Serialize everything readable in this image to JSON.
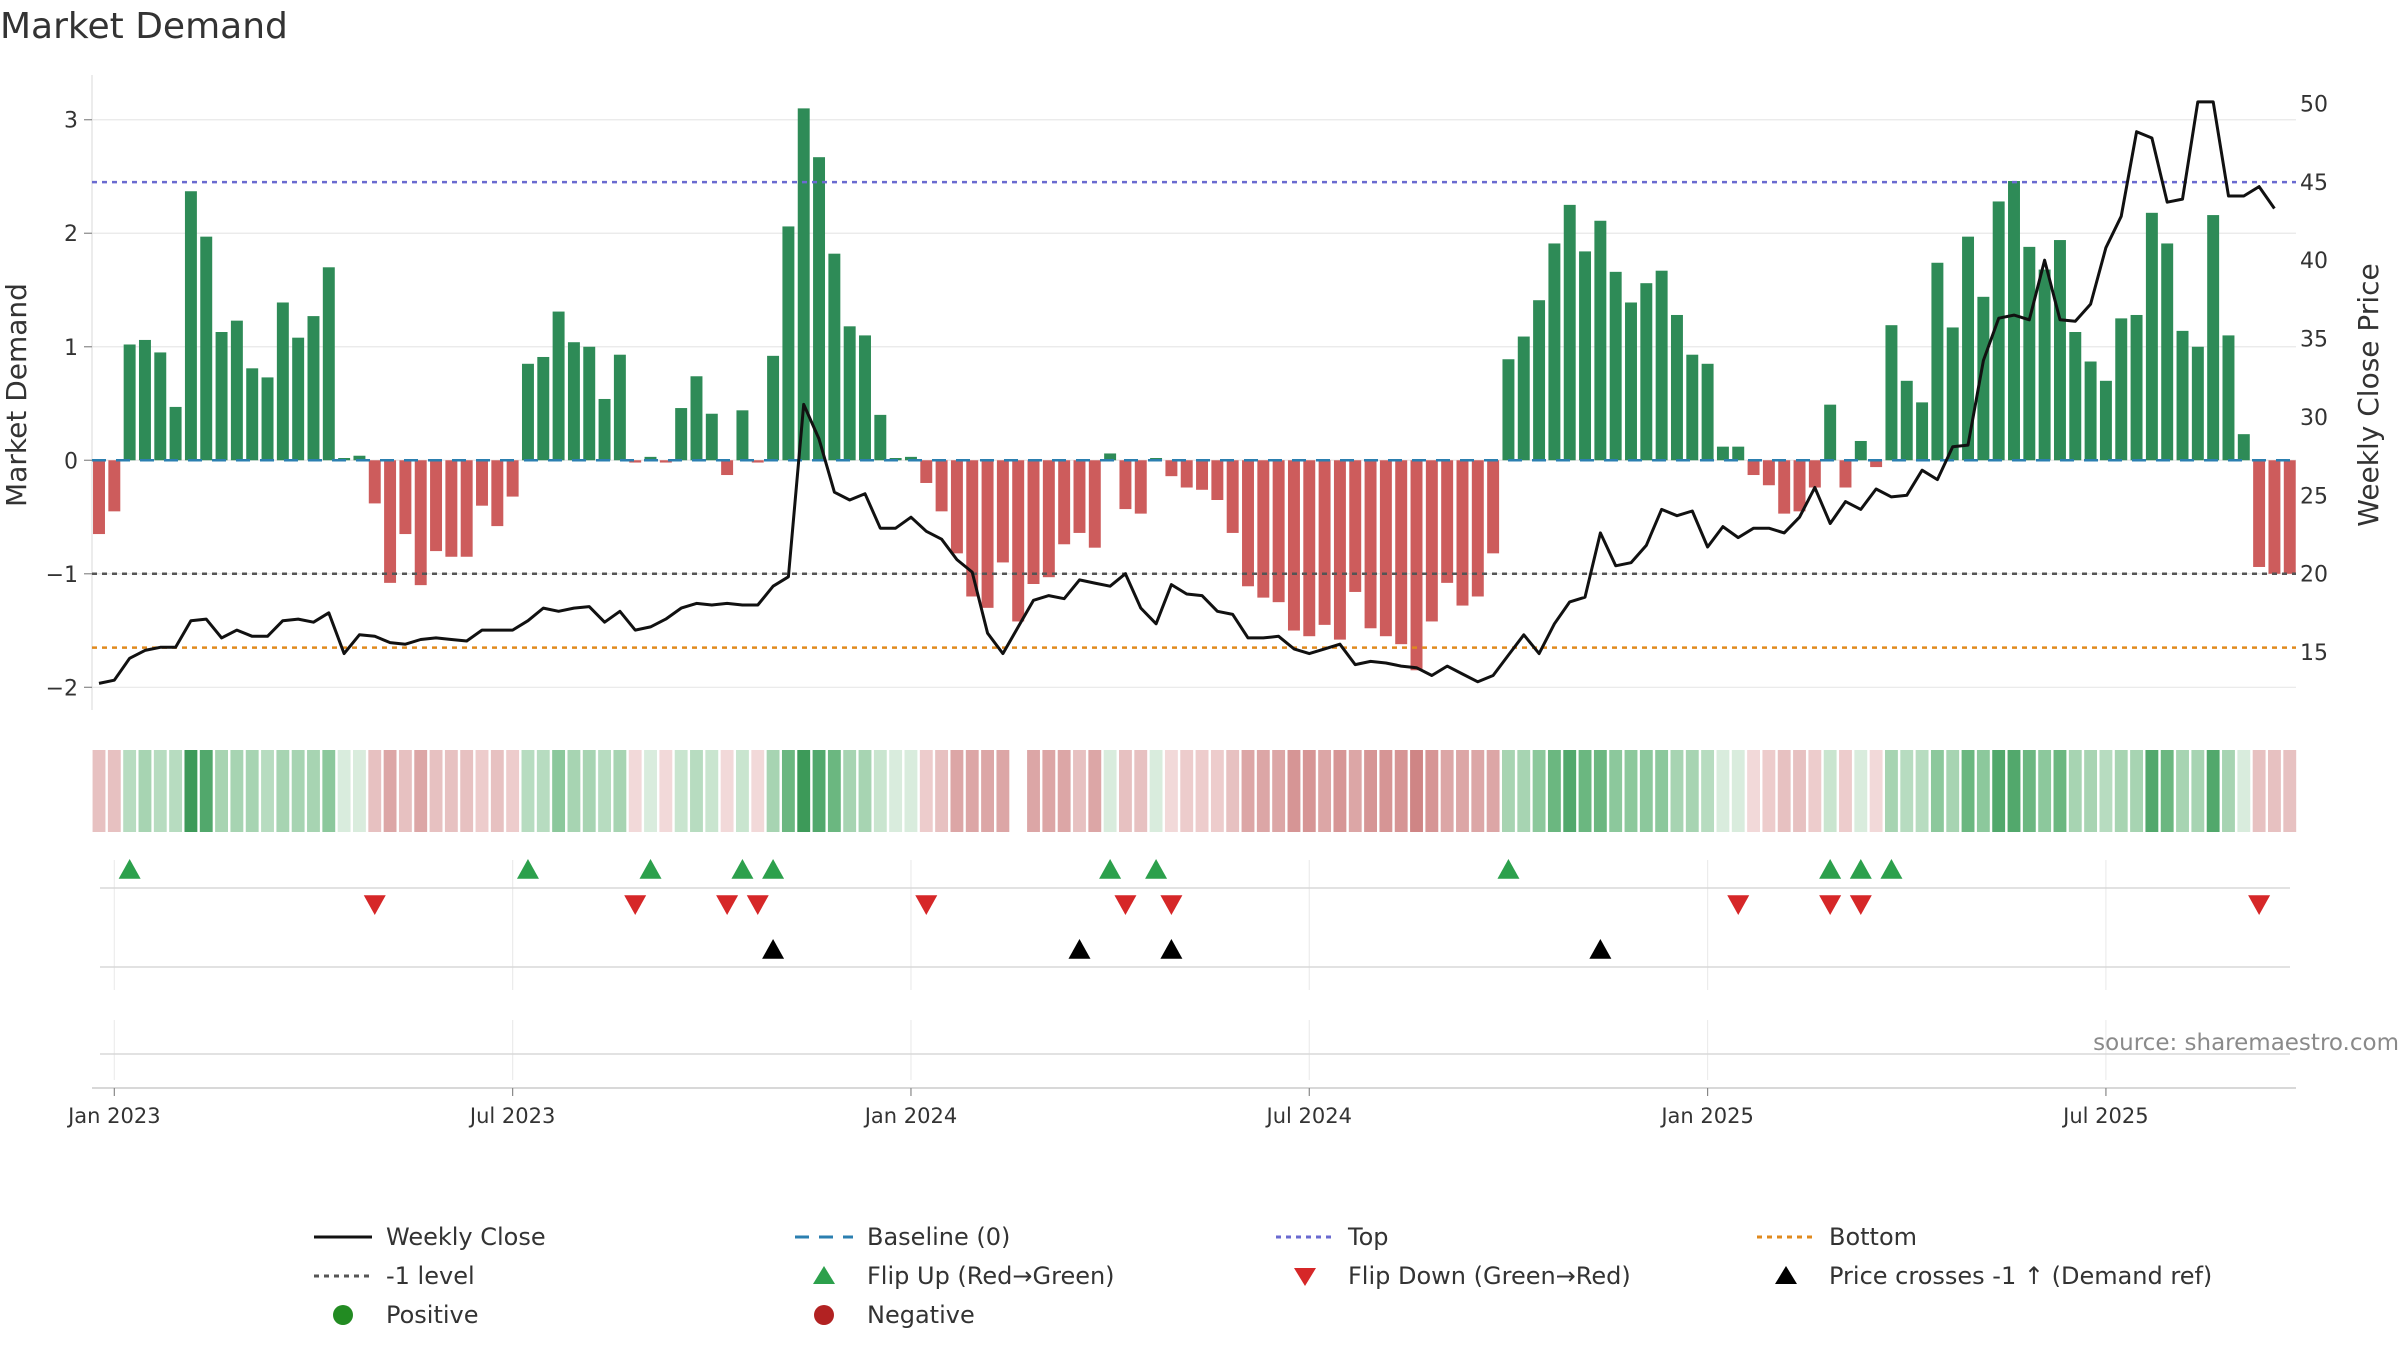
{
  "chart_data": {
    "type": "bar",
    "title": "Market Demand",
    "ylabel": "Market Demand",
    "y2label": "Weekly Close Price",
    "ylim": [
      -2.2,
      3.35
    ],
    "y2lim": [
      11.3,
      51.5
    ],
    "yticks": [
      "3",
      "2",
      "1",
      "0",
      "−1",
      "−2"
    ],
    "ytick_values": [
      3,
      2,
      1,
      0,
      -1,
      -2
    ],
    "y2ticks": [
      "50",
      "45",
      "40",
      "35",
      "30",
      "25",
      "20",
      "15"
    ],
    "y2tick_values": [
      50,
      45,
      40,
      35,
      30,
      25,
      20,
      15
    ],
    "xticks": [
      "Jan 2023",
      "Jul 2023",
      "Jan 2024",
      "Jul 2024",
      "Jan 2025",
      "Jul 2025"
    ],
    "xtick_weeks": [
      1,
      27,
      53,
      79,
      105,
      131
    ],
    "top_level": 2.45,
    "bottom_level": -1.65,
    "minus1_level": -1,
    "demand": [
      -0.65,
      -0.45,
      1.02,
      1.06,
      0.95,
      0.47,
      2.37,
      1.97,
      1.13,
      1.23,
      0.81,
      0.73,
      1.39,
      1.08,
      1.27,
      1.7,
      0.02,
      0.04,
      -0.38,
      -1.08,
      -0.65,
      -1.1,
      -0.8,
      -0.85,
      -0.85,
      -0.4,
      -0.58,
      -0.32,
      0.85,
      0.91,
      1.31,
      1.04,
      1.0,
      0.54,
      0.93,
      -0.02,
      0.03,
      -0.02,
      0.46,
      0.74,
      0.41,
      -0.13,
      0.44,
      -0.02,
      0.92,
      2.06,
      3.1,
      2.67,
      1.82,
      1.18,
      1.1,
      0.4,
      0.02,
      0.03,
      -0.2,
      -0.45,
      -0.82,
      -1.2,
      -1.3,
      -0.9,
      -1.42,
      -1.09,
      -1.03,
      -0.74,
      -0.64,
      -0.77,
      0.06,
      -0.43,
      -0.47,
      0.02,
      -0.14,
      -0.24,
      -0.26,
      -0.35,
      -0.64,
      -1.11,
      -1.21,
      -1.25,
      -1.5,
      -1.55,
      -1.45,
      -1.58,
      -1.16,
      -1.48,
      -1.55,
      -1.62,
      -1.85,
      -1.42,
      -1.08,
      -1.28,
      -1.2,
      -0.82,
      0.89,
      1.09,
      1.41,
      1.91,
      2.25,
      1.84,
      2.11,
      1.66,
      1.39,
      1.56,
      1.67,
      1.28,
      0.93,
      0.85,
      0.12,
      0.12,
      -0.13,
      -0.22,
      -0.47,
      -0.45,
      -0.24,
      0.49,
      -0.24,
      0.17,
      -0.06,
      1.19,
      0.7,
      0.51,
      1.74,
      1.17,
      1.97,
      1.44,
      2.28,
      2.46,
      1.88,
      1.68,
      1.94,
      1.13,
      0.87,
      0.7,
      1.25,
      1.28,
      2.18,
      1.91,
      1.14,
      1.0,
      2.16,
      1.1,
      0.23,
      -0.94,
      -1.0,
      -1.0
    ],
    "price": [
      13.0,
      13.2,
      14.6,
      15.1,
      15.3,
      15.3,
      17.0,
      17.1,
      15.9,
      16.4,
      16.0,
      16.0,
      17.0,
      17.1,
      16.9,
      17.5,
      14.9,
      16.1,
      16.0,
      15.6,
      15.5,
      15.8,
      15.9,
      15.8,
      15.7,
      16.4,
      16.4,
      16.4,
      17.0,
      17.8,
      17.6,
      17.8,
      17.9,
      16.9,
      17.6,
      16.4,
      16.6,
      17.1,
      17.8,
      18.1,
      18.0,
      18.1,
      18.0,
      18.0,
      19.2,
      19.8,
      30.8,
      28.6,
      25.2,
      24.7,
      25.1,
      22.9,
      22.9,
      23.6,
      22.7,
      22.2,
      20.9,
      20.1,
      16.2,
      14.9,
      16.6,
      18.3,
      18.6,
      18.4,
      19.6,
      19.4,
      19.2,
      20.0,
      17.8,
      16.8,
      19.3,
      18.7,
      18.6,
      17.6,
      17.4,
      15.9,
      15.9,
      16.0,
      15.2,
      14.9,
      15.2,
      15.5,
      14.2,
      14.4,
      14.3,
      14.1,
      14.0,
      13.5,
      14.1,
      13.6,
      13.1,
      13.5,
      14.8,
      16.1,
      14.9,
      16.8,
      18.2,
      18.5,
      22.6,
      20.5,
      20.7,
      21.8,
      24.1,
      23.7,
      24.0,
      21.7,
      23.0,
      22.3,
      22.9,
      22.9,
      22.6,
      23.6,
      25.5,
      23.2,
      24.6,
      24.1,
      25.4,
      24.9,
      25.0,
      26.6,
      26.0,
      28.1,
      28.2,
      33.6,
      36.3,
      36.5,
      36.2,
      40.0,
      36.2,
      36.1,
      37.2,
      40.8,
      42.8,
      48.2,
      47.8,
      43.7,
      43.9,
      50.1,
      50.1,
      44.1,
      44.1,
      44.7,
      43.3
    ],
    "colorband_colors": [
      "#e7c1c1",
      "#e7c1c1",
      "#b7dcc0",
      "#a7d4b2",
      "#b7dcc0",
      "#b7dcc0",
      "#3d9a59",
      "#52a86c",
      "#a7d4b2",
      "#a7d4b2",
      "#a7d4b2",
      "#b7dcc0",
      "#a7d4b2",
      "#a7d4b2",
      "#a7d4b2",
      "#8cc89c",
      "#d9ecdd",
      "#d9ecdd",
      "#e7c1c1",
      "#dca6a6",
      "#e7c1c1",
      "#dca6a6",
      "#e7c1c1",
      "#e7c1c1",
      "#e7c1c1",
      "#edcccc",
      "#e7c1c1",
      "#edcccc",
      "#b7dcc0",
      "#b7dcc0",
      "#8cc89c",
      "#a7d4b2",
      "#a7d4b2",
      "#b7dcc0",
      "#a7d4b2",
      "#f2d9d9",
      "#d9ecdd",
      "#f2d9d9",
      "#c9e5cf",
      "#b7dcc0",
      "#c9e5cf",
      "#f2d9d9",
      "#c9e5cf",
      "#f2d9d9",
      "#a7d4b2",
      "#6bb780",
      "#3d9a59",
      "#52a86c",
      "#6bb780",
      "#a7d4b2",
      "#a7d4b2",
      "#c9e5cf",
      "#d9ecdd",
      "#d9ecdd",
      "#edcccc",
      "#e7c1c1",
      "#dca6a6",
      "#dca6a6",
      "#dca6a6",
      "#dca6a6",
      "#ffffff",
      "#dca6a6",
      "#dca6a6",
      "#dca6a6",
      "#e7c1c1",
      "#dca6a6",
      "#d9ecdd",
      "#e7c1c1",
      "#e7c1c1",
      "#d9ecdd",
      "#f2d9d9",
      "#edcccc",
      "#edcccc",
      "#edcccc",
      "#e7c1c1",
      "#dca6a6",
      "#dca6a6",
      "#dca6a6",
      "#d69595",
      "#d69595",
      "#dca6a6",
      "#d69595",
      "#dca6a6",
      "#d69595",
      "#d69595",
      "#d69595",
      "#cf8585",
      "#d69595",
      "#dca6a6",
      "#dca6a6",
      "#dca6a6",
      "#dca6a6",
      "#a7d4b2",
      "#a7d4b2",
      "#8cc89c",
      "#6bb780",
      "#52a86c",
      "#6bb780",
      "#6bb780",
      "#8cc89c",
      "#8cc89c",
      "#8cc89c",
      "#8cc89c",
      "#a7d4b2",
      "#a7d4b2",
      "#b7dcc0",
      "#d9ecdd",
      "#d9ecdd",
      "#f2d9d9",
      "#edcccc",
      "#e7c1c1",
      "#e7c1c1",
      "#edcccc",
      "#c9e5cf",
      "#edcccc",
      "#d9ecdd",
      "#f2d9d9",
      "#a7d4b2",
      "#b7dcc0",
      "#b7dcc0",
      "#8cc89c",
      "#a7d4b2",
      "#6bb780",
      "#8cc89c",
      "#52a86c",
      "#52a86c",
      "#6bb780",
      "#8cc89c",
      "#6bb780",
      "#a7d4b2",
      "#a7d4b2",
      "#b7dcc0",
      "#a7d4b2",
      "#a7d4b2",
      "#52a86c",
      "#6bb780",
      "#a7d4b2",
      "#a7d4b2",
      "#52a86c",
      "#a7d4b2",
      "#d9ecdd",
      "#e7c1c1",
      "#e7c1c1",
      "#e7c1c1"
    ],
    "flip_up_weeks": [
      2,
      28,
      36,
      42,
      44,
      66,
      69,
      92,
      113,
      115,
      117
    ],
    "flip_down_weeks": [
      18,
      35,
      41,
      43,
      54,
      67,
      70,
      107,
      113,
      115,
      141
    ],
    "price_cross_weeks": [
      44,
      64,
      70,
      98
    ],
    "source": "source: sharemaestro.com",
    "legend": [
      {
        "label": "Weekly Close",
        "kind": "line",
        "color": "#111111"
      },
      {
        "label": "Baseline (0)",
        "kind": "dash",
        "color": "#2b7fb0"
      },
      {
        "label": "Top",
        "kind": "dot",
        "color": "#6a6ad0"
      },
      {
        "label": "Bottom",
        "kind": "dot",
        "color": "#e08a1e"
      },
      {
        "label": "-1 level",
        "kind": "dot",
        "color": "#555555"
      },
      {
        "label": "Flip Up (Red→Green)",
        "kind": "up",
        "color": "#2ca04c"
      },
      {
        "label": "Flip Down (Green→Red)",
        "kind": "down",
        "color": "#d62728"
      },
      {
        "label": "Price crosses -1 ↑ (Demand ref)",
        "kind": "up",
        "color": "#000000"
      },
      {
        "label": "Positive",
        "kind": "circle",
        "color": "#228b22"
      },
      {
        "label": "Negative",
        "kind": "circle",
        "color": "#b22222"
      }
    ],
    "colors": {
      "positive_bar": "#2e8b57",
      "negative_bar": "#cd5c5c",
      "close_line": "#111111",
      "baseline": "#2b7fb0",
      "top": "#6a6ad0",
      "bottom": "#e08a1e",
      "minus1": "#555555",
      "flip_up": "#2ca04c",
      "flip_down": "#d62728",
      "cross": "#000000",
      "grid": "#e8e8e8",
      "axis_text": "#333333"
    }
  }
}
